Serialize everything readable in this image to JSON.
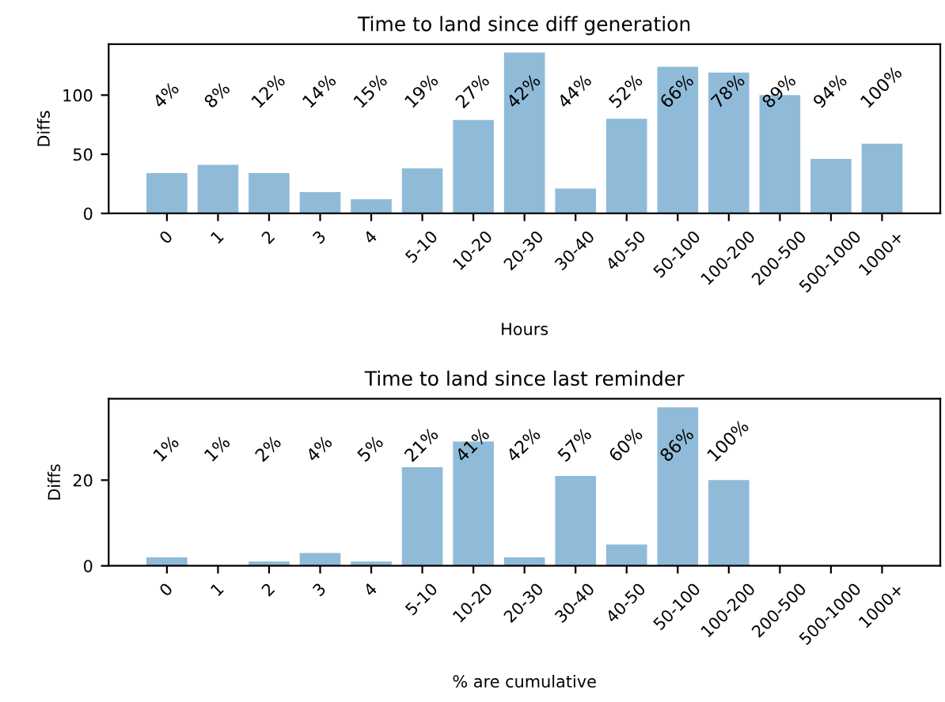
{
  "chart_data": [
    {
      "type": "bar",
      "title": "Time to land since diff generation",
      "xlabel": "Hours",
      "ylabel": "Diffs",
      "categories": [
        "0",
        "1",
        "2",
        "3",
        "4",
        "5-10",
        "10-20",
        "20-30",
        "30-40",
        "40-50",
        "50-100",
        "100-200",
        "200-500",
        "500-1000",
        "1000+"
      ],
      "values": [
        34,
        41,
        34,
        18,
        12,
        38,
        79,
        136,
        21,
        80,
        124,
        119,
        100,
        46,
        59
      ],
      "annotations": [
        "4%",
        "8%",
        "12%",
        "14%",
        "15%",
        "19%",
        "27%",
        "42%",
        "44%",
        "52%",
        "66%",
        "78%",
        "89%",
        "94%",
        "100%"
      ],
      "color": "#8fbbd9",
      "ylim": [
        0,
        143
      ],
      "yticks": [
        0,
        50,
        100
      ],
      "grid": false,
      "legend": false
    },
    {
      "type": "bar",
      "title": "Time to land since last reminder",
      "xlabel": "% are cumulative",
      "ylabel": "Diffs",
      "categories": [
        "0",
        "1",
        "2",
        "3",
        "4",
        "5-10",
        "10-20",
        "20-30",
        "30-40",
        "40-50",
        "50-100",
        "100-200",
        "200-500",
        "500-1000",
        "1000+"
      ],
      "values": [
        2,
        0,
        1,
        3,
        1,
        23,
        29,
        2,
        21,
        5,
        37,
        20,
        0,
        0,
        0
      ],
      "annotations": [
        "1%",
        "1%",
        "2%",
        "4%",
        "5%",
        "21%",
        "41%",
        "42%",
        "57%",
        "60%",
        "86%",
        "100%"
      ],
      "color": "#8fbbd9",
      "ylim": [
        0,
        39
      ],
      "yticks": [
        0,
        20
      ],
      "grid": false,
      "legend": false
    }
  ]
}
